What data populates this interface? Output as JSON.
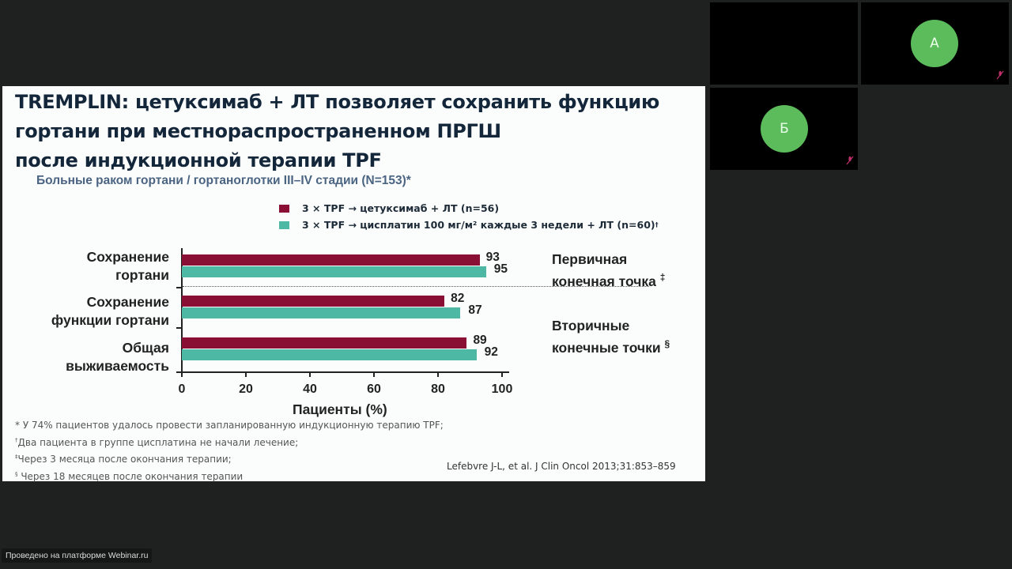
{
  "slide": {
    "title_lines": [
      "TREMPLIN: цетуксимаб + ЛТ позволяет сохранить функцию",
      "гортани при местнораспространенном ПРГШ",
      "после индукционной терапии TPF"
    ],
    "subtitle": "Больные раком гортани / гортаноглотки III–IV стадии (N=153)*",
    "legend": [
      {
        "label": "3 × TPF → цетуксимаб + ЛТ (n=56)",
        "sup": "",
        "color": "#8a0f35"
      },
      {
        "label": "3 × TPF → цисплатин 100 мг/м² каждые 3 недели + ЛТ (n=60)",
        "sup": "†",
        "color": "#4db8a4"
      }
    ],
    "endpoints": {
      "primary": {
        "line1": "Первичная",
        "line2": "конечная точка",
        "sup": "‡"
      },
      "secondary": {
        "line1": "Вторичные",
        "line2": "конечные точки",
        "sup": "§"
      }
    },
    "footnotes": [
      {
        "mark": "*",
        "text": " У 74% пациентов удалось провести запланированную индукционную терапию TPF;"
      },
      {
        "mark": "†",
        "text": "Два пациента в группе цисплатина не начали лечение;"
      },
      {
        "mark": "‡",
        "text": "Через 3 месяца после окончания терапии;"
      },
      {
        "mark": "§",
        "text": " Через 18 месяцев после окончания терапии"
      }
    ],
    "citation": "Lefebvre J-L, et al. J Clin Oncol 2013;31:853–859"
  },
  "chart_data": {
    "type": "bar",
    "orientation": "horizontal",
    "categories": [
      [
        "Сохранение",
        "гортани"
      ],
      [
        "Сохранение",
        "функции гортани"
      ],
      [
        "Общая",
        "выживаемость"
      ]
    ],
    "series": [
      {
        "name": "3 × TPF → цетуксимаб + ЛТ (n=56)",
        "color": "#8a0f35",
        "values": [
          93,
          82,
          89
        ]
      },
      {
        "name": "3 × TPF → цисплатин 100 мг/м² каждые 3 недели + ЛТ (n=60)†",
        "color": "#4db8a4",
        "values": [
          95,
          87,
          92
        ]
      }
    ],
    "title": "Больные раком гортани / гортаноглотки III–IV стадии (N=153)*",
    "xlabel": "Пациенты (%)",
    "ylabel": "",
    "xlim": [
      0,
      100
    ],
    "xticks": [
      "0",
      "20",
      "40",
      "60",
      "80",
      "100"
    ],
    "grid": false,
    "legend_position": "top",
    "annotations": [
      "Первичная конечная точка ‡",
      "Вторичные конечные точки §"
    ]
  },
  "participants": [
    {
      "initial": "А",
      "muted": true
    },
    {
      "initial": "Б",
      "muted": true
    }
  ],
  "watermark": "Проведено на платформе Webinar.ru"
}
